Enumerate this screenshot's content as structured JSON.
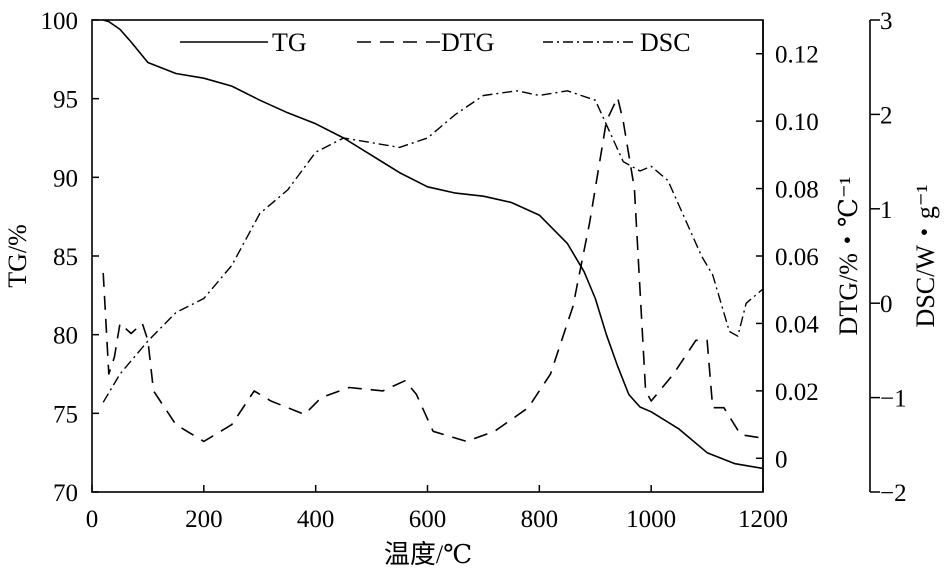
{
  "chart_data": {
    "type": "line",
    "xlabel": "温度/℃",
    "ylabel_left": "TG/%",
    "ylabel_right1": "DTG/%・℃⁻¹",
    "ylabel_right2": "DSC/W・g⁻¹",
    "xlim": [
      0,
      1200
    ],
    "x_ticks": [
      0,
      200,
      400,
      600,
      800,
      1000,
      1200
    ],
    "tg_axis": {
      "lim": [
        70,
        100
      ],
      "ticks": [
        70,
        75,
        80,
        85,
        90,
        95,
        100
      ]
    },
    "dtg_axis": {
      "lim": [
        -0.01,
        0.13
      ],
      "ticks": [
        0,
        0.02,
        0.04,
        0.06,
        0.08,
        0.1,
        0.12
      ],
      "tick_labels": [
        "0",
        "0.02",
        "0.04",
        "0.06",
        "0.08",
        "0.10",
        "0.12"
      ]
    },
    "dsc_axis": {
      "lim": [
        -2,
        3
      ],
      "ticks": [
        -2,
        -1,
        0,
        1,
        2,
        3
      ],
      "tick_labels": [
        "−2",
        "−1",
        "0",
        "1",
        "2",
        "3"
      ]
    },
    "legend": [
      "TG",
      "DTG",
      "DSC"
    ],
    "series": [
      {
        "name": "TG",
        "axis": "tg",
        "style": "solid",
        "points": [
          [
            20,
            100
          ],
          [
            30,
            99.9
          ],
          [
            50,
            99.4
          ],
          [
            70,
            98.6
          ],
          [
            100,
            97.3
          ],
          [
            150,
            96.6
          ],
          [
            200,
            96.3
          ],
          [
            250,
            95.8
          ],
          [
            300,
            94.9
          ],
          [
            350,
            94.1
          ],
          [
            400,
            93.4
          ],
          [
            450,
            92.5
          ],
          [
            500,
            91.4
          ],
          [
            550,
            90.3
          ],
          [
            600,
            89.4
          ],
          [
            650,
            89.0
          ],
          [
            700,
            88.8
          ],
          [
            750,
            88.4
          ],
          [
            800,
            87.6
          ],
          [
            850,
            85.8
          ],
          [
            880,
            84.0
          ],
          [
            900,
            82.3
          ],
          [
            920,
            80.0
          ],
          [
            940,
            78.0
          ],
          [
            960,
            76.2
          ],
          [
            980,
            75.4
          ],
          [
            1000,
            75.1
          ],
          [
            1050,
            74.0
          ],
          [
            1100,
            72.5
          ],
          [
            1150,
            71.8
          ],
          [
            1200,
            71.5
          ]
        ]
      },
      {
        "name": "DTG",
        "axis": "dtg",
        "style": "dashed",
        "points": [
          [
            20,
            0.055
          ],
          [
            30,
            0.025
          ],
          [
            40,
            0.03
          ],
          [
            50,
            0.04
          ],
          [
            70,
            0.037
          ],
          [
            90,
            0.04
          ],
          [
            100,
            0.035
          ],
          [
            110,
            0.02
          ],
          [
            150,
            0.01
          ],
          [
            200,
            0.005
          ],
          [
            250,
            0.01
          ],
          [
            290,
            0.02
          ],
          [
            320,
            0.017
          ],
          [
            350,
            0.015
          ],
          [
            380,
            0.013
          ],
          [
            410,
            0.018
          ],
          [
            460,
            0.021
          ],
          [
            520,
            0.02
          ],
          [
            560,
            0.023
          ],
          [
            580,
            0.019
          ],
          [
            610,
            0.008
          ],
          [
            670,
            0.005
          ],
          [
            720,
            0.008
          ],
          [
            780,
            0.015
          ],
          [
            820,
            0.025
          ],
          [
            860,
            0.045
          ],
          [
            890,
            0.07
          ],
          [
            920,
            0.1
          ],
          [
            940,
            0.107
          ],
          [
            950,
            0.1
          ],
          [
            970,
            0.08
          ],
          [
            990,
            0.02
          ],
          [
            1000,
            0.017
          ],
          [
            1040,
            0.025
          ],
          [
            1080,
            0.035
          ],
          [
            1100,
            0.035
          ],
          [
            1110,
            0.015
          ],
          [
            1130,
            0.015
          ],
          [
            1160,
            0.007
          ],
          [
            1200,
            0.006
          ]
        ]
      },
      {
        "name": "DSC",
        "axis": "dsc",
        "style": "dashdot",
        "points": [
          [
            20,
            -1.05
          ],
          [
            50,
            -0.75
          ],
          [
            100,
            -0.4
          ],
          [
            150,
            -0.1
          ],
          [
            200,
            0.05
          ],
          [
            250,
            0.4
          ],
          [
            300,
            0.95
          ],
          [
            350,
            1.2
          ],
          [
            400,
            1.6
          ],
          [
            450,
            1.75
          ],
          [
            500,
            1.7
          ],
          [
            550,
            1.65
          ],
          [
            600,
            1.75
          ],
          [
            650,
            2.0
          ],
          [
            700,
            2.2
          ],
          [
            760,
            2.25
          ],
          [
            800,
            2.2
          ],
          [
            850,
            2.25
          ],
          [
            900,
            2.15
          ],
          [
            950,
            1.5
          ],
          [
            980,
            1.4
          ],
          [
            1000,
            1.45
          ],
          [
            1030,
            1.3
          ],
          [
            1060,
            0.9
          ],
          [
            1090,
            0.5
          ],
          [
            1110,
            0.3
          ],
          [
            1140,
            -0.3
          ],
          [
            1155,
            -0.35
          ],
          [
            1170,
            0.0
          ],
          [
            1200,
            0.15
          ]
        ]
      }
    ]
  }
}
